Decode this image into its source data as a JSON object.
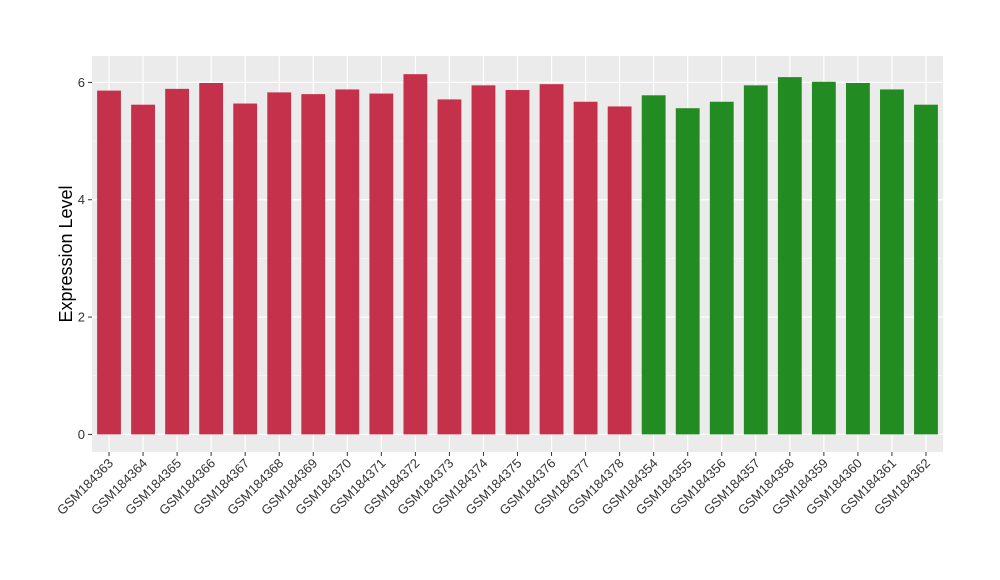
{
  "chart_data": {
    "type": "bar",
    "title": "",
    "xlabel": "",
    "ylabel": "Expression Level",
    "ylim": [
      -0.3,
      6.45
    ],
    "yticks": [
      0,
      2,
      4,
      6
    ],
    "grid": true,
    "legend": "none",
    "categories": [
      "GSM184363",
      "GSM184364",
      "GSM184365",
      "GSM184366",
      "GSM184367",
      "GSM184368",
      "GSM184369",
      "GSM184370",
      "GSM184371",
      "GSM184372",
      "GSM184373",
      "GSM184374",
      "GSM184375",
      "GSM184376",
      "GSM184377",
      "GSM184378",
      "GSM184354",
      "GSM184355",
      "GSM184356",
      "GSM184357",
      "GSM184358",
      "GSM184359",
      "GSM184360",
      "GSM184361",
      "GSM184362"
    ],
    "values": [
      5.86,
      5.62,
      5.89,
      5.99,
      5.64,
      5.83,
      5.8,
      5.88,
      5.81,
      6.14,
      5.71,
      5.95,
      5.87,
      5.97,
      5.67,
      5.59,
      5.78,
      5.56,
      5.67,
      5.95,
      6.09,
      6.01,
      5.99,
      5.88,
      5.62
    ],
    "bar_colors": [
      "#C5314A",
      "#C5314A",
      "#C5314A",
      "#C5314A",
      "#C5314A",
      "#C5314A",
      "#C5314A",
      "#C5314A",
      "#C5314A",
      "#C5314A",
      "#C5314A",
      "#C5314A",
      "#C5314A",
      "#C5314A",
      "#C5314A",
      "#C5314A",
      "#228B22",
      "#228B22",
      "#228B22",
      "#228B22",
      "#228B22",
      "#228B22",
      "#228B22",
      "#228B22",
      "#228B22"
    ],
    "panel_background": "#EBEBEB",
    "grid_color": "#FFFFFF"
  }
}
